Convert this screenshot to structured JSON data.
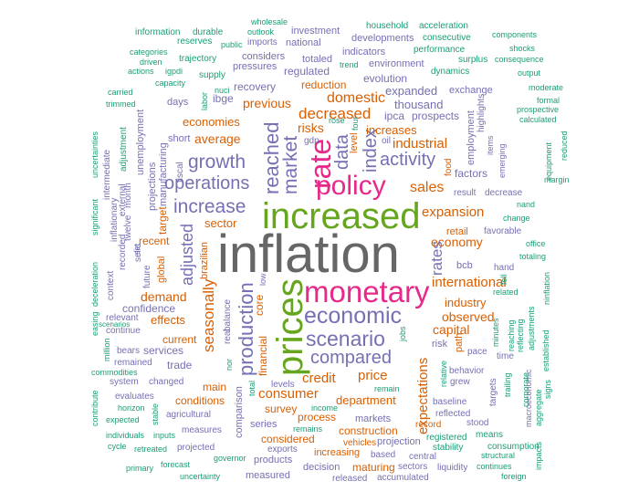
{
  "words": [
    {
      "text": "inflation",
      "cls": "c-gray"
    },
    {
      "text": "increased",
      "cls": "c-green"
    },
    {
      "text": "prices",
      "cls": "c-green"
    },
    {
      "text": "monetary",
      "cls": "c-pink"
    },
    {
      "text": "policy",
      "cls": "c-pink"
    },
    {
      "text": "rate",
      "cls": "c-pink"
    },
    {
      "text": "economic",
      "cls": "c-purple"
    },
    {
      "text": "scenario",
      "cls": "c-purple"
    },
    {
      "text": "compared",
      "cls": "c-purple"
    },
    {
      "text": "production",
      "cls": "c-purple"
    },
    {
      "text": "increase",
      "cls": "c-purple"
    },
    {
      "text": "growth",
      "cls": "c-purple"
    },
    {
      "text": "operations",
      "cls": "c-purple"
    },
    {
      "text": "reached",
      "cls": "c-purple"
    },
    {
      "text": "market",
      "cls": "c-purple"
    },
    {
      "text": "data",
      "cls": "c-purple"
    },
    {
      "text": "index",
      "cls": "c-purple"
    },
    {
      "text": "activity",
      "cls": "c-purple"
    },
    {
      "text": "adjusted",
      "cls": "c-purple"
    },
    {
      "text": "seasonally",
      "cls": "c-orange"
    },
    {
      "text": "decreased",
      "cls": "c-orange"
    },
    {
      "text": "domestic",
      "cls": "c-orange"
    },
    {
      "text": "industrial",
      "cls": "c-orange"
    },
    {
      "text": "sales",
      "cls": "c-orange"
    },
    {
      "text": "expansion",
      "cls": "c-orange"
    },
    {
      "text": "economy",
      "cls": "c-orange"
    },
    {
      "text": "rates",
      "cls": "c-purple"
    },
    {
      "text": "international",
      "cls": "c-orange"
    },
    {
      "text": "expectations",
      "cls": "c-orange"
    },
    {
      "text": "credit",
      "cls": "c-orange"
    },
    {
      "text": "price",
      "cls": "c-orange"
    },
    {
      "text": "consumer",
      "cls": "c-orange"
    },
    {
      "text": "department",
      "cls": "c-orange"
    },
    {
      "text": "capital",
      "cls": "c-orange"
    },
    {
      "text": "observed",
      "cls": "c-orange"
    },
    {
      "text": "industry",
      "cls": "c-orange"
    },
    {
      "text": "demand",
      "cls": "c-orange"
    },
    {
      "text": "effects",
      "cls": "c-orange"
    },
    {
      "text": "average",
      "cls": "c-orange"
    },
    {
      "text": "economies",
      "cls": "c-orange"
    },
    {
      "text": "previous",
      "cls": "c-orange"
    },
    {
      "text": "risks",
      "cls": "c-orange"
    },
    {
      "text": "increases",
      "cls": "c-orange"
    },
    {
      "text": "thousand",
      "cls": "c-purple"
    },
    {
      "text": "expanded",
      "cls": "c-purple"
    },
    {
      "text": "ipca",
      "cls": "c-purple"
    },
    {
      "text": "prospects",
      "cls": "c-purple"
    },
    {
      "text": "sector",
      "cls": "c-orange"
    },
    {
      "text": "recent",
      "cls": "c-orange"
    },
    {
      "text": "target",
      "cls": "c-orange"
    },
    {
      "text": "global",
      "cls": "c-orange"
    },
    {
      "text": "confidence",
      "cls": "c-purple"
    },
    {
      "text": "current",
      "cls": "c-orange"
    },
    {
      "text": "services",
      "cls": "c-purple"
    },
    {
      "text": "trade",
      "cls": "c-purple"
    },
    {
      "text": "main",
      "cls": "c-orange"
    },
    {
      "text": "conditions",
      "cls": "c-orange"
    },
    {
      "text": "financial",
      "cls": "c-orange"
    },
    {
      "text": "core",
      "cls": "c-orange"
    },
    {
      "text": "survey",
      "cls": "c-orange"
    },
    {
      "text": "process",
      "cls": "c-orange"
    },
    {
      "text": "construction",
      "cls": "c-orange"
    },
    {
      "text": "markets",
      "cls": "c-purple"
    },
    {
      "text": "series",
      "cls": "c-purple"
    },
    {
      "text": "considered",
      "cls": "c-orange"
    },
    {
      "text": "increasing",
      "cls": "c-orange"
    },
    {
      "text": "exports",
      "cls": "c-purple"
    },
    {
      "text": "products",
      "cls": "c-purple"
    },
    {
      "text": "measured",
      "cls": "c-purple"
    },
    {
      "text": "decision",
      "cls": "c-purple"
    },
    {
      "text": "maturing",
      "cls": "c-orange"
    },
    {
      "text": "sectors",
      "cls": "c-purple"
    },
    {
      "text": "released",
      "cls": "c-purple"
    },
    {
      "text": "accumulated",
      "cls": "c-purple"
    },
    {
      "text": "based",
      "cls": "c-purple"
    },
    {
      "text": "projection",
      "cls": "c-purple"
    },
    {
      "text": "vehicles",
      "cls": "c-orange"
    },
    {
      "text": "central",
      "cls": "c-purple"
    },
    {
      "text": "liquidity",
      "cls": "c-purple"
    },
    {
      "text": "stability",
      "cls": "c-teal"
    },
    {
      "text": "registered",
      "cls": "c-teal"
    },
    {
      "text": "record",
      "cls": "c-orange"
    },
    {
      "text": "stood",
      "cls": "c-purple"
    },
    {
      "text": "reflected",
      "cls": "c-purple"
    },
    {
      "text": "baseline",
      "cls": "c-purple"
    },
    {
      "text": "behavior",
      "cls": "c-purple"
    },
    {
      "text": "grew",
      "cls": "c-purple"
    },
    {
      "text": "risk",
      "cls": "c-purple"
    },
    {
      "text": "path",
      "cls": "c-orange"
    },
    {
      "text": "pace",
      "cls": "c-purple"
    },
    {
      "text": "time",
      "cls": "c-purple"
    },
    {
      "text": "bcb",
      "cls": "c-purple"
    },
    {
      "text": "hand",
      "cls": "c-purple"
    },
    {
      "text": "retail",
      "cls": "c-orange"
    },
    {
      "text": "favorable",
      "cls": "c-purple"
    },
    {
      "text": "change",
      "cls": "c-teal"
    },
    {
      "text": "office",
      "cls": "c-teal"
    },
    {
      "text": "totaling",
      "cls": "c-teal"
    },
    {
      "text": "related",
      "cls": "c-teal"
    },
    {
      "text": "nand",
      "cls": "c-teal"
    },
    {
      "text": "decrease",
      "cls": "c-purple"
    },
    {
      "text": "result",
      "cls": "c-purple"
    },
    {
      "text": "factors",
      "cls": "c-purple"
    },
    {
      "text": "food",
      "cls": "c-orange"
    },
    {
      "text": "employment",
      "cls": "c-purple"
    },
    {
      "text": "highlights",
      "cls": "c-purple"
    },
    {
      "text": "items",
      "cls": "c-purple"
    },
    {
      "text": "emerging",
      "cls": "c-purple"
    },
    {
      "text": "equipment",
      "cls": "c-teal"
    },
    {
      "text": "reduced",
      "cls": "c-teal"
    },
    {
      "text": "margin",
      "cls": "c-teal"
    },
    {
      "text": "calculated",
      "cls": "c-teal"
    },
    {
      "text": "prospective",
      "cls": "c-teal"
    },
    {
      "text": "moderate",
      "cls": "c-teal"
    },
    {
      "text": "exchange",
      "cls": "c-purple"
    },
    {
      "text": "output",
      "cls": "c-teal"
    },
    {
      "text": "consequence",
      "cls": "c-teal"
    },
    {
      "text": "shocks",
      "cls": "c-teal"
    },
    {
      "text": "components",
      "cls": "c-teal"
    },
    {
      "text": "acceleration",
      "cls": "c-teal"
    },
    {
      "text": "consecutive",
      "cls": "c-teal"
    },
    {
      "text": "performance",
      "cls": "c-teal"
    },
    {
      "text": "surplus",
      "cls": "c-teal"
    },
    {
      "text": "dynamics",
      "cls": "c-teal"
    },
    {
      "text": "formal",
      "cls": "c-teal"
    },
    {
      "text": "household",
      "cls": "c-teal"
    },
    {
      "text": "developments",
      "cls": "c-purple"
    },
    {
      "text": "indicators",
      "cls": "c-purple"
    },
    {
      "text": "environment",
      "cls": "c-purple"
    },
    {
      "text": "evolution",
      "cls": "c-purple"
    },
    {
      "text": "trend",
      "cls": "c-teal"
    },
    {
      "text": "regulated",
      "cls": "c-purple"
    },
    {
      "text": "totaled",
      "cls": "c-purple"
    },
    {
      "text": "reduction",
      "cls": "c-orange"
    },
    {
      "text": "considers",
      "cls": "c-purple"
    },
    {
      "text": "pressures",
      "cls": "c-purple"
    },
    {
      "text": "recovery",
      "cls": "c-purple"
    },
    {
      "text": "investment",
      "cls": "c-purple"
    },
    {
      "text": "wholesale",
      "cls": "c-teal"
    },
    {
      "text": "outlook",
      "cls": "c-teal"
    },
    {
      "text": "imports",
      "cls": "c-purple"
    },
    {
      "text": "national",
      "cls": "c-purple"
    },
    {
      "text": "information",
      "cls": "c-teal"
    },
    {
      "text": "durable",
      "cls": "c-teal"
    },
    {
      "text": "reserves",
      "cls": "c-teal"
    },
    {
      "text": "public",
      "cls": "c-teal"
    },
    {
      "text": "categories",
      "cls": "c-teal"
    },
    {
      "text": "trajectory",
      "cls": "c-teal"
    },
    {
      "text": "driven",
      "cls": "c-teal"
    },
    {
      "text": "actions",
      "cls": "c-teal"
    },
    {
      "text": "igpdi",
      "cls": "c-teal"
    },
    {
      "text": "supply",
      "cls": "c-teal"
    },
    {
      "text": "capacity",
      "cls": "c-teal"
    },
    {
      "text": "nuci",
      "cls": "c-teal"
    },
    {
      "text": "labor",
      "cls": "c-teal"
    },
    {
      "text": "ibge",
      "cls": "c-purple"
    },
    {
      "text": "days",
      "cls": "c-purple"
    },
    {
      "text": "carried",
      "cls": "c-teal"
    },
    {
      "text": "trimmed",
      "cls": "c-teal"
    },
    {
      "text": "unemployment",
      "cls": "c-purple"
    },
    {
      "text": "short",
      "cls": "c-purple"
    },
    {
      "text": "manufacturing",
      "cls": "c-purple"
    },
    {
      "text": "projections",
      "cls": "c-purple"
    },
    {
      "text": "adjustment",
      "cls": "c-teal"
    },
    {
      "text": "external",
      "cls": "c-purple"
    },
    {
      "text": "intermediate",
      "cls": "c-purple"
    },
    {
      "text": "uncertainties",
      "cls": "c-teal"
    },
    {
      "text": "twelve",
      "cls": "c-purple"
    },
    {
      "text": "month",
      "cls": "c-purple"
    },
    {
      "text": "significant",
      "cls": "c-teal"
    },
    {
      "text": "inflationary",
      "cls": "c-purple"
    },
    {
      "text": "recorded",
      "cls": "c-purple"
    },
    {
      "text": "context",
      "cls": "c-purple"
    },
    {
      "text": "selic",
      "cls": "c-purple"
    },
    {
      "text": "set",
      "cls": "c-purple"
    },
    {
      "text": "future",
      "cls": "c-purple"
    },
    {
      "text": "deceleration",
      "cls": "c-teal"
    },
    {
      "text": "relevant",
      "cls": "c-purple"
    },
    {
      "text": "continue",
      "cls": "c-purple"
    },
    {
      "text": "easing",
      "cls": "c-teal"
    },
    {
      "text": "scenarios",
      "cls": "c-teal"
    },
    {
      "text": "bears",
      "cls": "c-purple"
    },
    {
      "text": "remained",
      "cls": "c-purple"
    },
    {
      "text": "million",
      "cls": "c-teal"
    },
    {
      "text": "commodities",
      "cls": "c-teal"
    },
    {
      "text": "system",
      "cls": "c-purple"
    },
    {
      "text": "changed",
      "cls": "c-purple"
    },
    {
      "text": "evaluates",
      "cls": "c-purple"
    },
    {
      "text": "agricultural",
      "cls": "c-purple"
    },
    {
      "text": "horizon",
      "cls": "c-teal"
    },
    {
      "text": "contribute",
      "cls": "c-teal"
    },
    {
      "text": "expected",
      "cls": "c-teal"
    },
    {
      "text": "stable",
      "cls": "c-teal"
    },
    {
      "text": "measures",
      "cls": "c-purple"
    },
    {
      "text": "individuals",
      "cls": "c-teal"
    },
    {
      "text": "inputs",
      "cls": "c-teal"
    },
    {
      "text": "cycle",
      "cls": "c-teal"
    },
    {
      "text": "retreated",
      "cls": "c-teal"
    },
    {
      "text": "projected",
      "cls": "c-purple"
    },
    {
      "text": "governor",
      "cls": "c-teal"
    },
    {
      "text": "primary",
      "cls": "c-teal"
    },
    {
      "text": "forecast",
      "cls": "c-teal"
    },
    {
      "text": "uncertainty",
      "cls": "c-teal"
    },
    {
      "text": "brazilian",
      "cls": "c-orange"
    },
    {
      "text": "fiscal",
      "cls": "c-purple"
    },
    {
      "text": "balance",
      "cls": "c-purple"
    },
    {
      "text": "real",
      "cls": "c-purple"
    },
    {
      "text": "low",
      "cls": "c-purple"
    },
    {
      "text": "comparison",
      "cls": "c-purple"
    },
    {
      "text": "nor",
      "cls": "c-teal"
    },
    {
      "text": "total",
      "cls": "c-teal"
    },
    {
      "text": "levels",
      "cls": "c-purple"
    },
    {
      "text": "income",
      "cls": "c-teal"
    },
    {
      "text": "remains",
      "cls": "c-teal"
    },
    {
      "text": "level",
      "cls": "c-orange"
    },
    {
      "text": "oil",
      "cls": "c-purple"
    },
    {
      "text": "gdp",
      "cls": "c-purple"
    },
    {
      "text": "rose",
      "cls": "c-teal"
    },
    {
      "text": "four",
      "cls": "c-teal"
    },
    {
      "text": "jobs",
      "cls": "c-teal"
    },
    {
      "text": "remain",
      "cls": "c-teal"
    },
    {
      "text": "relative",
      "cls": "c-teal"
    },
    {
      "text": "fell",
      "cls": "c-teal"
    },
    {
      "text": "minutes",
      "cls": "c-teal"
    },
    {
      "text": "reaching",
      "cls": "c-teal"
    },
    {
      "text": "reflecting",
      "cls": "c-teal"
    },
    {
      "text": "adjustments",
      "cls": "c-teal"
    },
    {
      "text": "ninflation",
      "cls": "c-teal"
    },
    {
      "text": "established",
      "cls": "c-teal"
    },
    {
      "text": "trailing",
      "cls": "c-teal"
    },
    {
      "text": "targets",
      "cls": "c-purple"
    },
    {
      "text": "corporate",
      "cls": "c-teal"
    },
    {
      "text": "macroeconomic",
      "cls": "c-purple"
    },
    {
      "text": "aggregate",
      "cls": "c-teal"
    },
    {
      "text": "signs",
      "cls": "c-teal"
    },
    {
      "text": "impacts",
      "cls": "c-teal"
    },
    {
      "text": "means",
      "cls": "c-teal"
    },
    {
      "text": "consumption",
      "cls": "c-teal"
    },
    {
      "text": "structural",
      "cls": "c-teal"
    },
    {
      "text": "continues",
      "cls": "c-teal"
    },
    {
      "text": "foreign",
      "cls": "c-teal"
    }
  ]
}
